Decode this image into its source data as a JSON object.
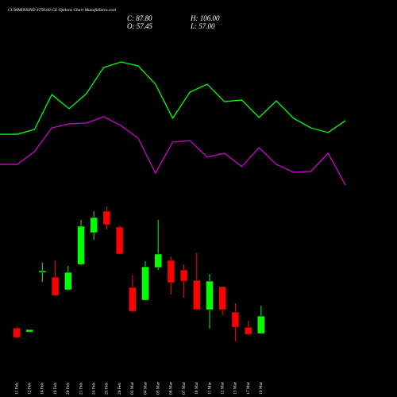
{
  "chart_data": [
    {
      "type": "candlestick",
      "title": "CUMMINSIND 4750.00 CE Options  Chart MunafaSutra.com",
      "annotations": [
        "C: 87.80",
        "O: 57.45",
        "H: 106.00",
        "L: 57.00"
      ],
      "categories": [
        "11 Feb",
        "12 Feb",
        "18 Feb",
        "19 Feb",
        "20 Feb",
        "21 Feb",
        "24 Feb",
        "25 Feb",
        "28 Feb",
        "03 Mar",
        "04 Mar",
        "05 Mar",
        "06 Mar",
        "07 Mar",
        "10 Mar",
        "11 Mar",
        "12 Mar",
        "13 Mar",
        "17 Mar",
        "19 Mar"
      ],
      "open": [
        67.1,
        60.2,
        163.7,
        155.4,
        133.4,
        177.5,
        232.7,
        270.0,
        242.4,
        137.5,
        115.4,
        172.1,
        184.4,
        167.9,
        149.9,
        98.9,
        138.9,
        94.7,
        68.5,
        57.45
      ],
      "high": [
        69.9,
        64.4,
        180.3,
        184.4,
        174.8,
        254.8,
        270.0,
        278.3,
        245.1,
        158.2,
        183.0,
        254.8,
        191.3,
        177.5,
        198.2,
        161.0,
        138.9,
        109.9,
        79.5,
        106.0
      ],
      "low": [
        49.2,
        60.2,
        147.2,
        122.3,
        132.0,
        176.1,
        220.3,
        238.2,
        195.5,
        94.7,
        115.4,
        167.9,
        125.1,
        119.6,
        98.9,
        65.7,
        89.2,
        43.7,
        54.7,
        57.0
      ],
      "close": [
        50.6,
        64.4,
        166.5,
        123.7,
        163.7,
        243.8,
        258.9,
        246.5,
        195.5,
        96.1,
        173.4,
        195.5,
        145.8,
        148.5,
        98.9,
        148.5,
        98.9,
        68.5,
        56.1,
        87.8
      ],
      "up_color": "#00ff00",
      "down_color": "#ff0000",
      "ylim": [
        30,
        292
      ]
    },
    {
      "type": "line",
      "series": [
        {
          "name": null,
          "color": "#00ff00",
          "values": [
            42.6,
            42.6,
            45.8,
            68.9,
            59.5,
            69.5,
            86.8,
            90.5,
            87.9,
            75.8,
            53.2,
            70.5,
            75.8,
            64.2,
            65.3,
            53.7,
            64.7,
            53.2,
            46.8,
            43.7,
            51.6
          ]
        },
        {
          "name": null,
          "color": "#cc00cc",
          "values": [
            22.6,
            22.6,
            31.1,
            46.8,
            49.5,
            50.0,
            54.2,
            48.4,
            40.0,
            16.8,
            37.4,
            38.4,
            27.4,
            30.0,
            21.1,
            33.7,
            22.6,
            17.4,
            17.9,
            30.0,
            8.9
          ]
        }
      ],
      "ylim": [
        0,
        100
      ]
    }
  ]
}
